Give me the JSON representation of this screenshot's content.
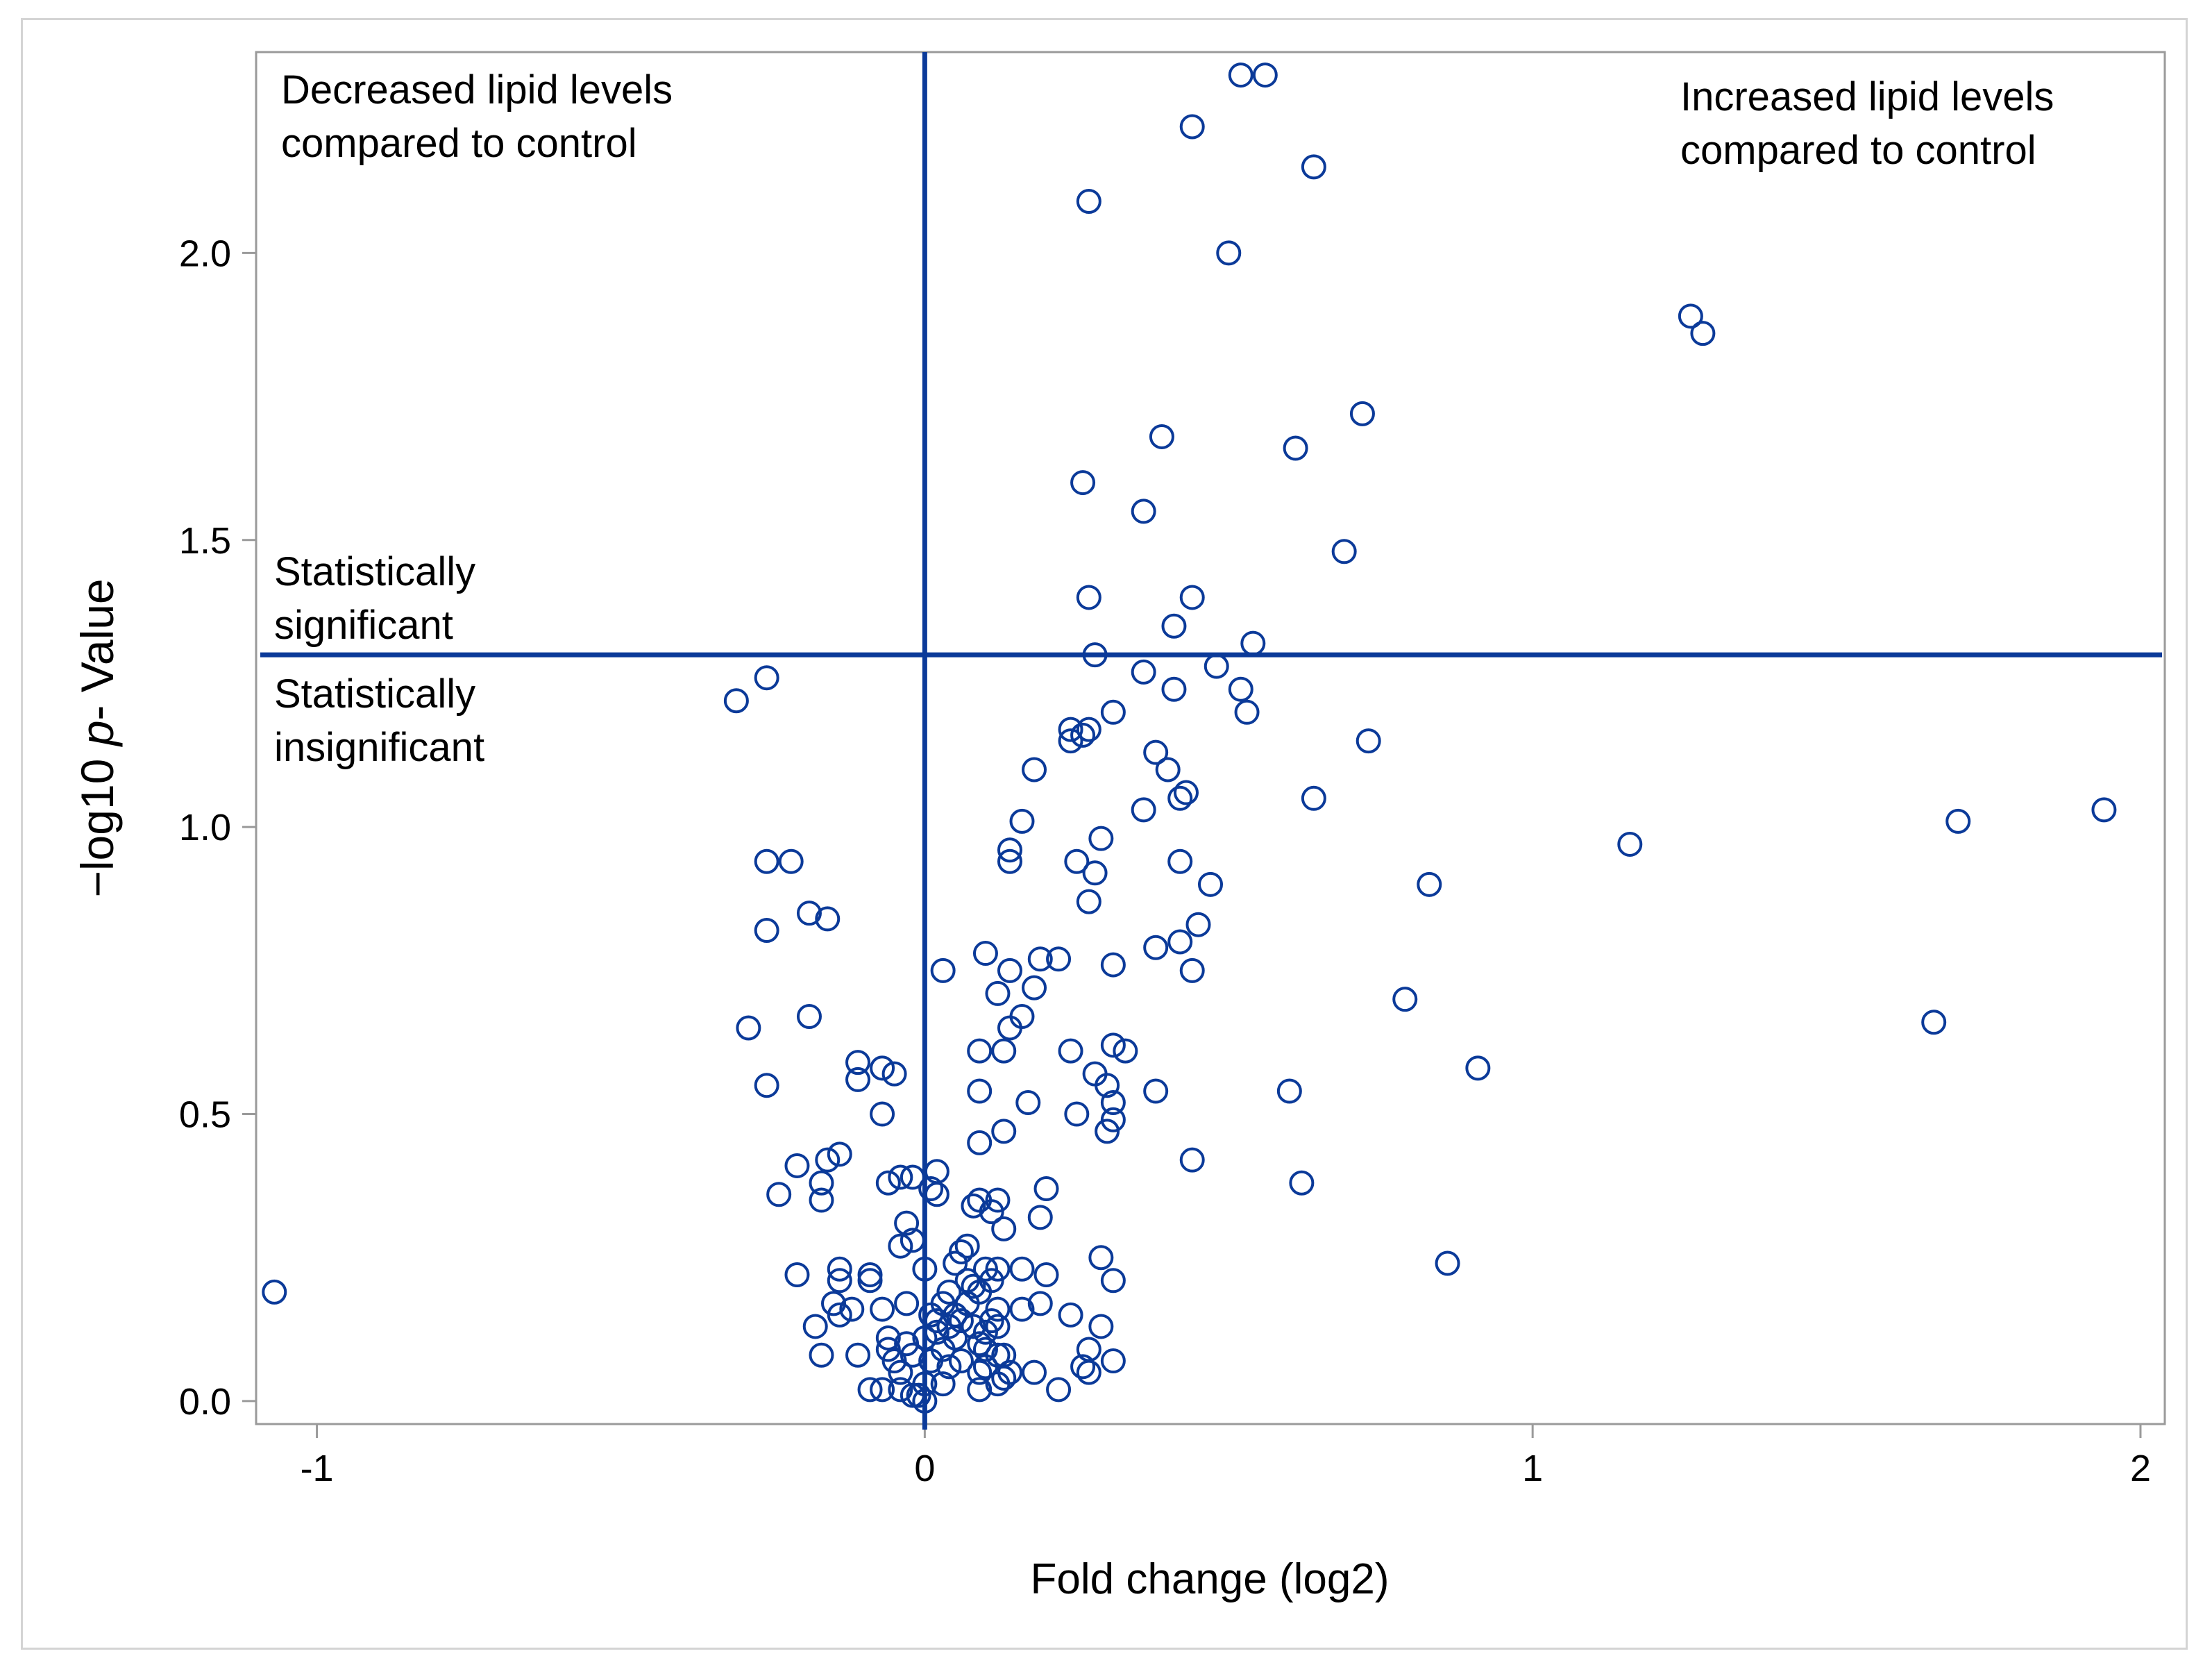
{
  "chart_data": {
    "type": "scatter",
    "title": "",
    "xlabel": "Fold change (log2)",
    "ylabel_parts": [
      "−log10 ",
      "p",
      "-  Value"
    ],
    "xlim": [
      -1.1,
      2.04
    ],
    "ylim": [
      -0.04,
      2.35
    ],
    "xticks": [
      -1,
      0,
      1,
      2
    ],
    "xtick_labels": [
      "-1",
      "0",
      "1",
      "2"
    ],
    "yticks": [
      0.0,
      0.5,
      1.0,
      1.5,
      2.0
    ],
    "ytick_labels": [
      "0.0",
      "0.5",
      "1.0",
      "1.5",
      "2.0"
    ],
    "grid": false,
    "reference_lines": {
      "vertical_x": 0,
      "horizontal_y": 1.3
    },
    "annotations": {
      "decreased": [
        "Decreased lipid levels",
        "compared to control"
      ],
      "increased": [
        "Increased lipid levels",
        "compared to control"
      ],
      "significant": [
        "Statistically",
        "significant"
      ],
      "insignificant": [
        "Statistically",
        "insignificant"
      ]
    },
    "marker_color": "#0b3a99",
    "line_color": "#0b3a99",
    "points": [
      [
        0.52,
        2.31
      ],
      [
        0.56,
        2.31
      ],
      [
        0.44,
        2.22
      ],
      [
        0.64,
        2.15
      ],
      [
        0.27,
        2.09
      ],
      [
        0.5,
        2.0
      ],
      [
        1.26,
        1.89
      ],
      [
        1.28,
        1.86
      ],
      [
        0.72,
        1.72
      ],
      [
        0.39,
        1.68
      ],
      [
        0.61,
        1.66
      ],
      [
        0.26,
        1.6
      ],
      [
        0.36,
        1.55
      ],
      [
        0.69,
        1.48
      ],
      [
        0.27,
        1.4
      ],
      [
        0.44,
        1.4
      ],
      [
        0.41,
        1.35
      ],
      [
        0.54,
        1.32
      ],
      [
        0.28,
        1.3
      ],
      [
        0.48,
        1.28
      ],
      [
        0.36,
        1.27
      ],
      [
        -0.31,
        1.22
      ],
      [
        -0.26,
        1.26
      ],
      [
        0.52,
        1.24
      ],
      [
        0.41,
        1.24
      ],
      [
        0.53,
        1.2
      ],
      [
        0.31,
        1.2
      ],
      [
        0.24,
        1.17
      ],
      [
        0.27,
        1.17
      ],
      [
        0.26,
        1.16
      ],
      [
        0.24,
        1.15
      ],
      [
        0.73,
        1.15
      ],
      [
        0.38,
        1.13
      ],
      [
        0.18,
        1.1
      ],
      [
        0.4,
        1.1
      ],
      [
        0.42,
        1.05
      ],
      [
        0.43,
        1.06
      ],
      [
        0.64,
        1.05
      ],
      [
        0.36,
        1.03
      ],
      [
        1.94,
        1.03
      ],
      [
        1.7,
        1.01
      ],
      [
        0.16,
        1.01
      ],
      [
        0.29,
        0.98
      ],
      [
        1.16,
        0.97
      ],
      [
        0.14,
        0.96
      ],
      [
        0.14,
        0.94
      ],
      [
        0.25,
        0.94
      ],
      [
        0.42,
        0.94
      ],
      [
        -0.26,
        0.94
      ],
      [
        -0.22,
        0.94
      ],
      [
        0.28,
        0.92
      ],
      [
        0.47,
        0.9
      ],
      [
        0.83,
        0.9
      ],
      [
        0.27,
        0.87
      ],
      [
        -0.19,
        0.85
      ],
      [
        -0.16,
        0.84
      ],
      [
        0.45,
        0.83
      ],
      [
        -0.26,
        0.82
      ],
      [
        0.42,
        0.8
      ],
      [
        0.38,
        0.79
      ],
      [
        0.1,
        0.78
      ],
      [
        0.19,
        0.77
      ],
      [
        0.22,
        0.77
      ],
      [
        0.31,
        0.76
      ],
      [
        0.03,
        0.75
      ],
      [
        0.14,
        0.75
      ],
      [
        0.44,
        0.75
      ],
      [
        0.18,
        0.72
      ],
      [
        0.12,
        0.71
      ],
      [
        0.79,
        0.7
      ],
      [
        -0.19,
        0.67
      ],
      [
        0.16,
        0.67
      ],
      [
        1.66,
        0.66
      ],
      [
        0.14,
        0.65
      ],
      [
        -0.29,
        0.65
      ],
      [
        0.31,
        0.62
      ],
      [
        0.33,
        0.61
      ],
      [
        0.24,
        0.61
      ],
      [
        0.09,
        0.61
      ],
      [
        0.13,
        0.61
      ],
      [
        -0.11,
        0.59
      ],
      [
        -0.07,
        0.58
      ],
      [
        -0.05,
        0.57
      ],
      [
        0.91,
        0.58
      ],
      [
        0.28,
        0.57
      ],
      [
        -0.11,
        0.56
      ],
      [
        0.3,
        0.55
      ],
      [
        -0.26,
        0.55
      ],
      [
        0.09,
        0.54
      ],
      [
        0.38,
        0.54
      ],
      [
        0.6,
        0.54
      ],
      [
        0.31,
        0.52
      ],
      [
        0.17,
        0.52
      ],
      [
        -0.07,
        0.5
      ],
      [
        0.25,
        0.5
      ],
      [
        0.31,
        0.49
      ],
      [
        0.3,
        0.47
      ],
      [
        0.13,
        0.47
      ],
      [
        0.09,
        0.45
      ],
      [
        -0.14,
        0.43
      ],
      [
        -0.16,
        0.42
      ],
      [
        0.44,
        0.42
      ],
      [
        -0.21,
        0.41
      ],
      [
        0.02,
        0.4
      ],
      [
        -0.04,
        0.39
      ],
      [
        -0.02,
        0.39
      ],
      [
        -0.06,
        0.38
      ],
      [
        -0.17,
        0.38
      ],
      [
        0.62,
        0.38
      ],
      [
        0.01,
        0.37
      ],
      [
        0.2,
        0.37
      ],
      [
        -0.24,
        0.36
      ],
      [
        0.02,
        0.36
      ],
      [
        -0.17,
        0.35
      ],
      [
        0.12,
        0.35
      ],
      [
        0.09,
        0.35
      ],
      [
        0.08,
        0.34
      ],
      [
        0.11,
        0.33
      ],
      [
        0.19,
        0.32
      ],
      [
        -0.03,
        0.31
      ],
      [
        0.13,
        0.3
      ],
      [
        -0.02,
        0.28
      ],
      [
        0.07,
        0.27
      ],
      [
        -0.04,
        0.27
      ],
      [
        0.06,
        0.26
      ],
      [
        0.29,
        0.25
      ],
      [
        0.86,
        0.24
      ],
      [
        0.05,
        0.24
      ],
      [
        0.1,
        0.23
      ],
      [
        0.12,
        0.23
      ],
      [
        0.16,
        0.23
      ],
      [
        0.0,
        0.23
      ],
      [
        -0.14,
        0.23
      ],
      [
        -0.09,
        0.22
      ],
      [
        -0.21,
        0.22
      ],
      [
        0.2,
        0.22
      ],
      [
        0.07,
        0.21
      ],
      [
        0.31,
        0.21
      ],
      [
        -0.09,
        0.21
      ],
      [
        -0.14,
        0.21
      ],
      [
        0.11,
        0.21
      ],
      [
        0.08,
        0.2
      ],
      [
        0.04,
        0.19
      ],
      [
        0.09,
        0.19
      ],
      [
        -0.15,
        0.17
      ],
      [
        -0.03,
        0.17
      ],
      [
        0.03,
        0.17
      ],
      [
        0.07,
        0.17
      ],
      [
        0.19,
        0.17
      ],
      [
        -0.12,
        0.16
      ],
      [
        -0.07,
        0.16
      ],
      [
        0.12,
        0.16
      ],
      [
        0.16,
        0.16
      ],
      [
        0.01,
        0.15
      ],
      [
        -0.14,
        0.15
      ],
      [
        0.24,
        0.15
      ],
      [
        0.05,
        0.15
      ],
      [
        0.11,
        0.14
      ],
      [
        0.02,
        0.14
      ],
      [
        0.06,
        0.14
      ],
      [
        0.08,
        0.13
      ],
      [
        0.04,
        0.13
      ],
      [
        0.12,
        0.13
      ],
      [
        -0.18,
        0.13
      ],
      [
        0.29,
        0.13
      ],
      [
        0.1,
        0.12
      ],
      [
        0.02,
        0.12
      ],
      [
        -0.06,
        0.11
      ],
      [
        0.05,
        0.11
      ],
      [
        0.0,
        0.11
      ],
      [
        -0.03,
        0.1
      ],
      [
        0.09,
        0.1
      ],
      [
        0.03,
        0.09
      ],
      [
        0.1,
        0.09
      ],
      [
        -0.06,
        0.09
      ],
      [
        0.12,
        0.08
      ],
      [
        0.27,
        0.09
      ],
      [
        -0.02,
        0.08
      ],
      [
        -0.11,
        0.08
      ],
      [
        -0.17,
        0.08
      ],
      [
        0.13,
        0.08
      ],
      [
        0.06,
        0.07
      ],
      [
        0.31,
        0.07
      ],
      [
        -0.05,
        0.07
      ],
      [
        0.01,
        0.07
      ],
      [
        0.04,
        0.06
      ],
      [
        0.26,
        0.06
      ],
      [
        0.1,
        0.06
      ],
      [
        0.27,
        0.05
      ],
      [
        0.18,
        0.05
      ],
      [
        0.14,
        0.05
      ],
      [
        -0.04,
        0.05
      ],
      [
        0.09,
        0.05
      ],
      [
        0.13,
        0.04
      ],
      [
        0.12,
        0.03
      ],
      [
        0.03,
        0.03
      ],
      [
        0.0,
        0.03
      ],
      [
        -0.07,
        0.02
      ],
      [
        -0.04,
        0.02
      ],
      [
        0.09,
        0.02
      ],
      [
        0.22,
        0.02
      ],
      [
        -0.09,
        0.02
      ],
      [
        -0.02,
        0.01
      ],
      [
        -0.01,
        0.01
      ],
      [
        0.0,
        0.0
      ],
      [
        -1.07,
        0.19
      ]
    ]
  }
}
